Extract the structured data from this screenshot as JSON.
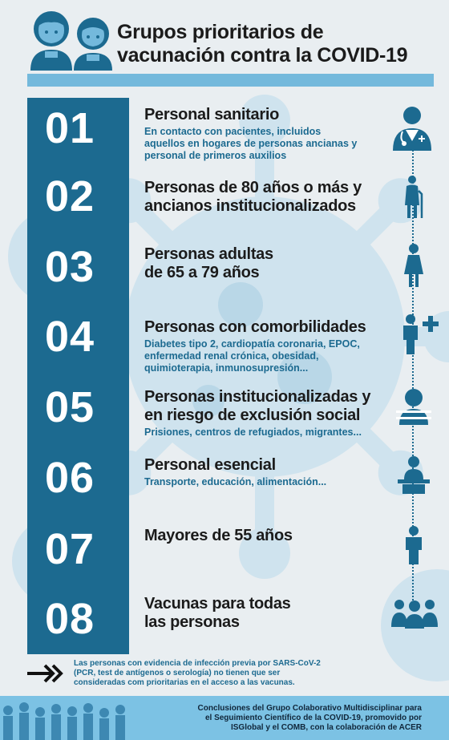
{
  "header": {
    "title_line1": "Grupos prioritarios de",
    "title_line2": "vacunación contra la COVID-19"
  },
  "groups": [
    {
      "number": "01",
      "title_line1": "Personal sanitario",
      "title_line2": "",
      "subtitle_lines": [
        "En contacto con pacientes, incluidos",
        "aquellos en hogares de personas ancianas y",
        "personal de primeros auxilios"
      ],
      "icon": "doctor-icon"
    },
    {
      "number": "02",
      "title_line1": "Personas de 80 años o más y",
      "title_line2": "ancianos institucionalizados",
      "subtitle_lines": [],
      "icon": "elderly-person-icon"
    },
    {
      "number": "03",
      "title_line1": "Personas adultas",
      "title_line2": "de 65 a 79 años",
      "subtitle_lines": [],
      "icon": "adult-woman-icon"
    },
    {
      "number": "04",
      "title_line1": "Personas con comorbilidades",
      "title_line2": "",
      "subtitle_lines": [
        "Diabetes tipo 2, cardiopatía coronaria, EPOC,",
        "enfermedad renal crónica, obesidad,",
        "quimioterapia, inmunosupresión..."
      ],
      "icon": "person-plus-icon"
    },
    {
      "number": "05",
      "title_line1": "Personas institucionalizadas y",
      "title_line2": "en riesgo de exclusión social",
      "subtitle_lines": [
        "Prisiones, centros de refugiados, migrantes..."
      ],
      "icon": "person-behind-bars-icon"
    },
    {
      "number": "06",
      "title_line1": "Personal esencial",
      "title_line2": "",
      "subtitle_lines": [
        "Transporte, educación, alimentación..."
      ],
      "icon": "worker-at-desk-icon"
    },
    {
      "number": "07",
      "title_line1": "Mayores de 55 años",
      "title_line2": "",
      "subtitle_lines": [],
      "icon": "man-icon"
    },
    {
      "number": "08",
      "title_line1": "Vacunas para todas",
      "title_line2": "las personas",
      "subtitle_lines": [],
      "icon": "group-of-people-icon"
    }
  ],
  "note": {
    "lines": [
      "Las personas con evidencia de infección previa por SARS-CoV-2",
      "(PCR, test de antígenos o serología) no tienen que ser",
      "consideradas com prioritarias en el acceso a las vacunas."
    ]
  },
  "footer": {
    "lines": [
      "Conclusiones del Grupo Colaborativo Multidisciplinar para",
      "el Seguimiento Científico de la COVID-19, promovido por",
      "ISGlobal y el COMB, con la colaboración de ACER"
    ]
  },
  "colors": {
    "dark_blue": "#1c6a90",
    "light_blue": "#74b9dc",
    "background": "#e9eef1"
  }
}
